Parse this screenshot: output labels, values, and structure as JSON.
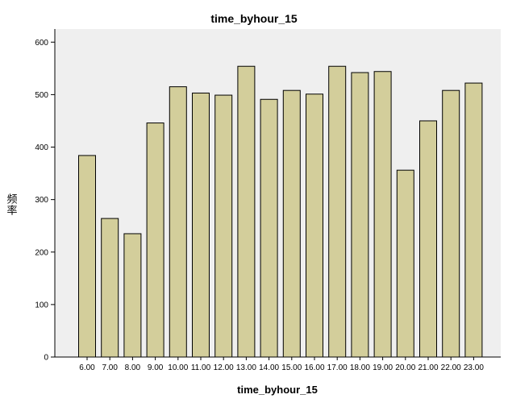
{
  "chart_data": {
    "type": "bar",
    "title": "time_byhour_15",
    "xlabel": "time_byhour_15",
    "ylabel": "频率",
    "categories": [
      "6.00",
      "7.00",
      "8.00",
      "9.00",
      "10.00",
      "11.00",
      "12.00",
      "13.00",
      "14.00",
      "15.00",
      "16.00",
      "17.00",
      "18.00",
      "19.00",
      "20.00",
      "21.00",
      "22.00",
      "23.00"
    ],
    "values": [
      384,
      264,
      235,
      446,
      515,
      503,
      499,
      554,
      491,
      508,
      501,
      554,
      542,
      544,
      356,
      450,
      508,
      522
    ],
    "ylim": [
      0,
      625
    ],
    "yticks": [
      0,
      100,
      200,
      300,
      400,
      500,
      600
    ],
    "grid": false,
    "colors": {
      "plot_background": "#efefef",
      "bar_fill": "#d3ce9b",
      "bar_stroke": "#000000"
    }
  }
}
